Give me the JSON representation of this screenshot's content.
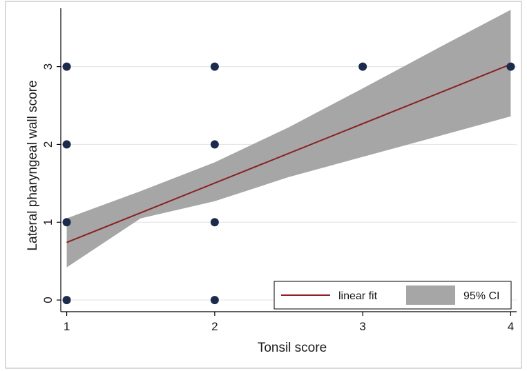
{
  "chart_data": {
    "type": "scatter",
    "xlabel": "Tonsil score",
    "ylabel": "Lateral pharyngeal wall score",
    "xlim": [
      0.96,
      4.04
    ],
    "ylim": [
      -0.15,
      3.75
    ],
    "xticks": [
      "1",
      "2",
      "3",
      "4"
    ],
    "yticks": [
      "0",
      "1",
      "2",
      "3"
    ],
    "grid": true,
    "legend_position": "bottom-right",
    "points": [
      {
        "x": 1,
        "y": 0
      },
      {
        "x": 1,
        "y": 1
      },
      {
        "x": 1,
        "y": 2
      },
      {
        "x": 1,
        "y": 3
      },
      {
        "x": 2,
        "y": 0
      },
      {
        "x": 2,
        "y": 1
      },
      {
        "x": 2,
        "y": 2
      },
      {
        "x": 2,
        "y": 3
      },
      {
        "x": 3,
        "y": 3
      },
      {
        "x": 4,
        "y": 3
      }
    ],
    "fit": {
      "name": "linear fit",
      "x": [
        1,
        4
      ],
      "y": [
        0.74,
        3.03
      ]
    },
    "ci": {
      "name": "95% CI",
      "x": [
        1,
        1.5,
        2,
        2.5,
        3,
        3.5,
        4
      ],
      "upper": [
        1.05,
        1.4,
        1.77,
        2.22,
        2.72,
        3.23,
        3.73
      ],
      "lower": [
        0.42,
        1.05,
        1.27,
        1.58,
        1.84,
        2.1,
        2.36
      ]
    },
    "colors": {
      "point": "#1a2b4c",
      "fit_line": "#8b2020",
      "ci_fill": "#a6a6a6",
      "grid": "#e6e6e6",
      "axis": "#000000",
      "frame": "#b5b5b5"
    }
  }
}
